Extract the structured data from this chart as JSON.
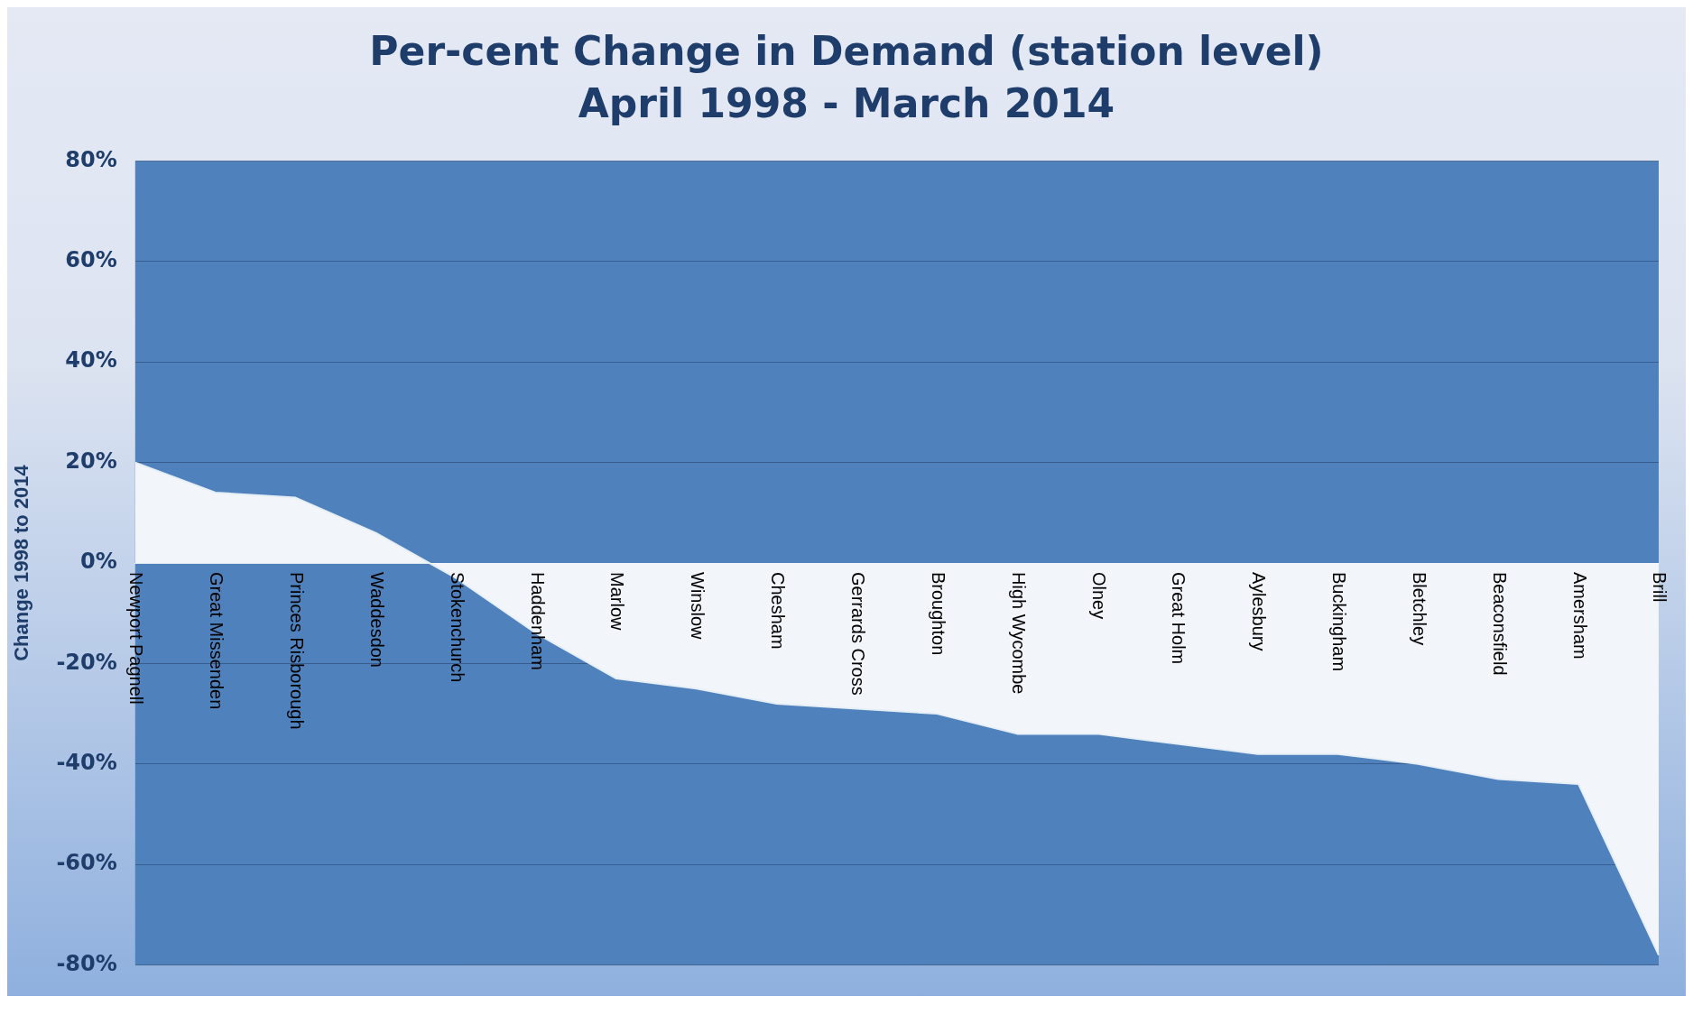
{
  "chart_data": {
    "type": "area",
    "title": "Per-cent Change in Demand (station level)",
    "subtitle": "April 1998 - March 2014",
    "ylabel": "Change 1998 to 2014",
    "categories": [
      "Newport Pagnell",
      "Great Missenden",
      "Princes Risborough",
      "Waddesdon",
      "Stokenchurch",
      "Haddenham",
      "Marlow",
      "Winslow",
      "Chesham",
      "Gerrards Cross",
      "Broughton",
      "High Wycombe",
      "Olney",
      "Great Holm",
      "Aylesbury",
      "Buckingham",
      "Bletchley",
      "Beaconsfield",
      "Amersham",
      "Brill"
    ],
    "values": [
      20,
      14,
      13,
      6,
      -3,
      -14,
      -23,
      -25,
      -28,
      -29,
      -30,
      -34,
      -34,
      -36,
      -38,
      -38,
      -40,
      -43,
      -44,
      -78
    ],
    "color": "#f2f6fa",
    "ylim": [
      -80,
      80
    ],
    "yticks": [
      {
        "value": -80,
        "label": "-80%"
      },
      {
        "value": -60,
        "label": "-60%"
      },
      {
        "value": -40,
        "label": "-40%"
      },
      {
        "value": -20,
        "label": "-20%"
      },
      {
        "value": 0,
        "label": "0%"
      },
      {
        "value": 20,
        "label": "20%"
      },
      {
        "value": 40,
        "label": "40%"
      },
      {
        "value": 60,
        "label": "60%"
      },
      {
        "value": 80,
        "label": "80%"
      }
    ],
    "grid": "y"
  }
}
